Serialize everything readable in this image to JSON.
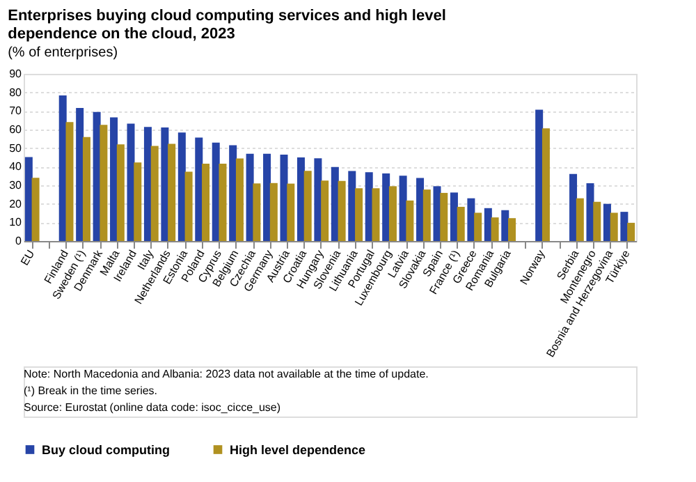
{
  "chart_data": {
    "type": "bar",
    "title": "Enterprises buying cloud computing services and high level dependence on the cloud, 2023",
    "subtitle": "(% of enterprises)",
    "categories": [
      "EU",
      null,
      "Finland",
      "Sweden (¹)",
      "Denmark",
      "Malta",
      "Ireland",
      "Italy",
      "Netherlands",
      "Estonia",
      "Poland",
      "Cyprus",
      "Belgium",
      "Czechia",
      "Germany",
      "Austria",
      "Croatia",
      "Hungary",
      "Slovenia",
      "Lithuania",
      "Portugal",
      "Luxembourg",
      "Latvia",
      "Slovakia",
      "Spain",
      "France (¹)",
      "Greece",
      "Romania",
      "Bulgaria",
      null,
      "Norway",
      null,
      "Serbia",
      "Montenegro",
      "Bosnia and Herzegovina",
      "Türkiye"
    ],
    "series": [
      {
        "name": "Buy cloud computing",
        "color": "#2644a7",
        "values": [
          45.2,
          null,
          78.4,
          71.6,
          69.5,
          66.6,
          63.2,
          61.4,
          61.1,
          58.4,
          55.7,
          53.0,
          51.6,
          47.0,
          47.0,
          46.5,
          45.0,
          44.5,
          39.8,
          37.7,
          37.0,
          36.4,
          35.2,
          33.9,
          29.5,
          26.1,
          23.0,
          17.7,
          16.6,
          null,
          70.7,
          null,
          36.1,
          31.1,
          20.0,
          15.7
        ]
      },
      {
        "name": "High level dependence",
        "color": "#b09120",
        "values": [
          34.0,
          null,
          64.0,
          56.0,
          62.5,
          52.0,
          42.3,
          51.2,
          52.3,
          37.3,
          41.6,
          41.6,
          44.4,
          31.0,
          31.2,
          30.9,
          37.8,
          32.5,
          32.3,
          28.4,
          28.4,
          29.5,
          21.8,
          27.7,
          25.9,
          18.4,
          15.2,
          12.7,
          12.3,
          null,
          60.7,
          null,
          23.0,
          21.1,
          15.2,
          9.8
        ]
      }
    ],
    "ylim": [
      0,
      90
    ],
    "yticks": [
      0,
      10,
      20,
      30,
      40,
      50,
      60,
      70,
      80,
      90
    ],
    "grid": "y",
    "legend": "bottom",
    "annotations": [
      "Note: North Macedonia and Albania: 2023 data not available at the time of update.",
      "(¹) Break in the time series.",
      "Source: Eurostat (online data code: isoc_cicce_use)"
    ]
  }
}
